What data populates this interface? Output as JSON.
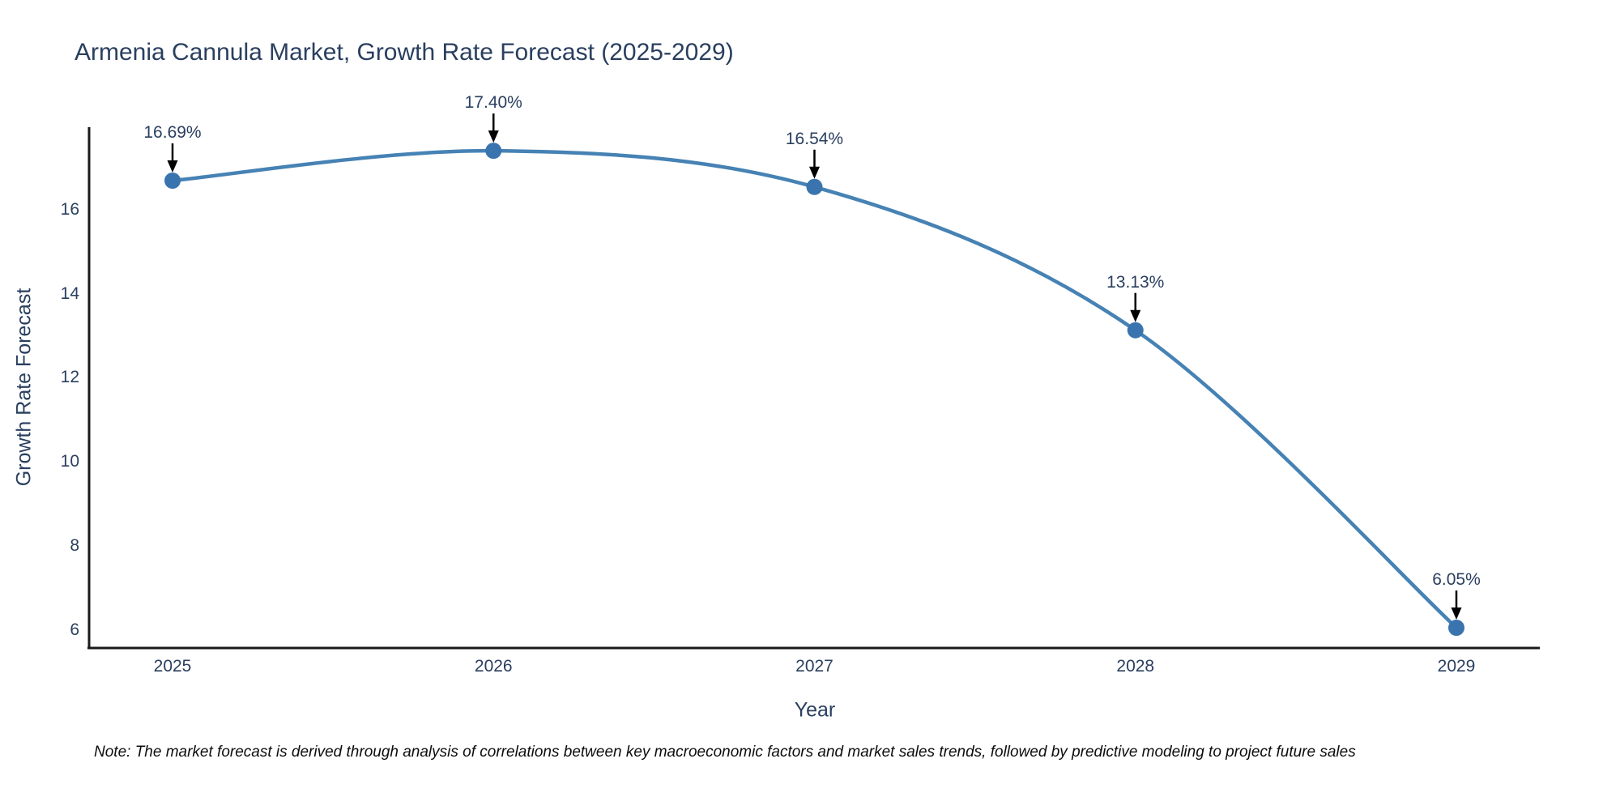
{
  "title": "Armenia Cannula Market, Growth Rate Forecast (2025-2029)",
  "note": "Note: The market forecast is derived through analysis of correlations between key macroeconomic factors and market sales trends, followed by predictive modeling to project future sales",
  "chart_data": {
    "type": "line",
    "line_shape": "spline",
    "x": [
      2025,
      2026,
      2027,
      2028,
      2029
    ],
    "y": [
      16.69,
      17.4,
      16.54,
      13.13,
      6.05
    ],
    "point_labels": [
      "16.69%",
      "17.40%",
      "16.54%",
      "13.13%",
      "6.05%"
    ],
    "title": "Armenia Cannula Market, Growth Rate Forecast (2025-2029)",
    "xlabel": "Year",
    "ylabel": "Growth Rate Forecast",
    "yticks": [
      6,
      8,
      10,
      12,
      14,
      16
    ],
    "ylim": [
      5.57,
      17.94
    ],
    "grid": false,
    "legend": false,
    "colors": {
      "line": "#4682b4",
      "marker": "#3a74ae",
      "axis": "#1a1a1a",
      "arrow": "#000000",
      "text": "#2a3f5f",
      "background": "#ffffff"
    }
  }
}
